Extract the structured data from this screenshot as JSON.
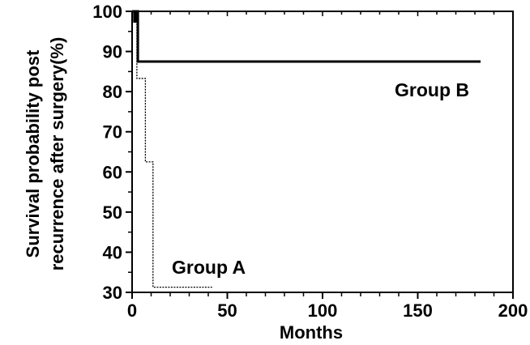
{
  "chart_data": {
    "type": "line",
    "subtype": "kaplan-meier-step",
    "xlabel": "Months",
    "ylabel_lines": [
      "Survival probability post",
      "recurrence after surgery(%)"
    ],
    "xlim": [
      0,
      200
    ],
    "ylim": [
      30,
      100
    ],
    "x_ticks": [
      0,
      50,
      100,
      150,
      200
    ],
    "y_ticks": [
      30,
      40,
      50,
      60,
      70,
      80,
      90,
      100
    ],
    "grid": false,
    "series": [
      {
        "name": "Group B",
        "line_style": "solid",
        "color": "#000000",
        "points": [
          [
            0,
            100
          ],
          [
            3,
            100
          ],
          [
            3,
            87.5
          ],
          [
            183,
            87.5
          ]
        ]
      },
      {
        "name": "Group A",
        "line_style": "dotted",
        "color": "#000000",
        "points": [
          [
            0,
            100
          ],
          [
            2.5,
            100
          ],
          [
            2.5,
            83.3
          ],
          [
            7,
            83.3
          ],
          [
            7,
            62.5
          ],
          [
            11,
            62.5
          ],
          [
            11,
            31.3
          ],
          [
            42,
            31.3
          ]
        ]
      }
    ],
    "annotations": [
      {
        "text": "Group B",
        "near_series": "Group B"
      },
      {
        "text": "Group A",
        "near_series": "Group A"
      }
    ]
  }
}
